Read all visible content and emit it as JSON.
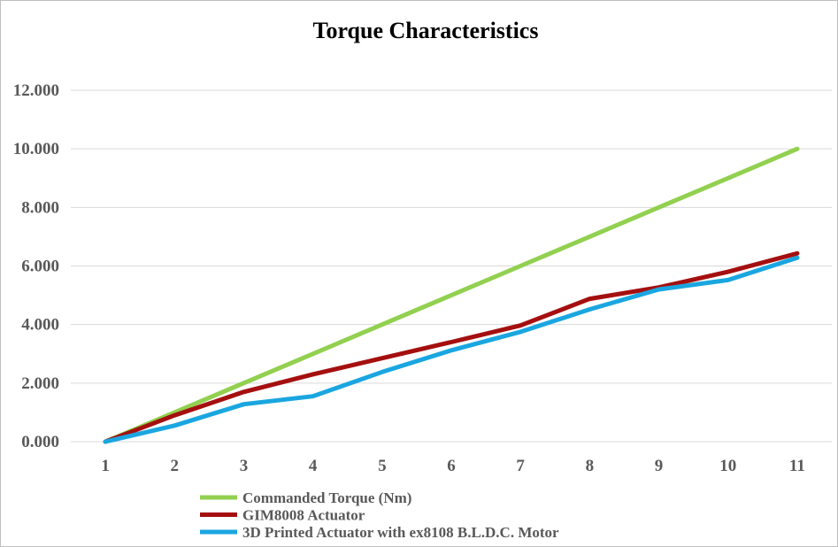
{
  "chart_data": {
    "type": "line",
    "title": "Torque Characteristics",
    "xlabel": "",
    "ylabel": "",
    "categories": [
      "1",
      "2",
      "3",
      "4",
      "5",
      "6",
      "7",
      "8",
      "9",
      "10",
      "11"
    ],
    "ylim": [
      0,
      12
    ],
    "y_ticks": [
      "0.000",
      "2.000",
      "4.000",
      "6.000",
      "8.000",
      "10.000",
      "12.000"
    ],
    "grid": true,
    "legend_position": "bottom-left",
    "series": [
      {
        "name": "Commanded Torque (Nm)",
        "color": "#92d050",
        "values": [
          0,
          1,
          2,
          3,
          4,
          5,
          6,
          7,
          8,
          9,
          10
        ]
      },
      {
        "name": "GIM8008 Actuator",
        "color": "#a50f0f",
        "values": [
          0,
          0.9,
          1.7,
          2.3,
          2.85,
          3.4,
          3.97,
          4.88,
          5.27,
          5.8,
          6.43
        ]
      },
      {
        "name": "3D Printed Actuator with ex8108 B.L.D.C. Motor",
        "color": "#1aa6e0",
        "values": [
          0,
          0.55,
          1.28,
          1.55,
          2.38,
          3.12,
          3.75,
          4.52,
          5.2,
          5.52,
          6.28
        ]
      }
    ]
  }
}
